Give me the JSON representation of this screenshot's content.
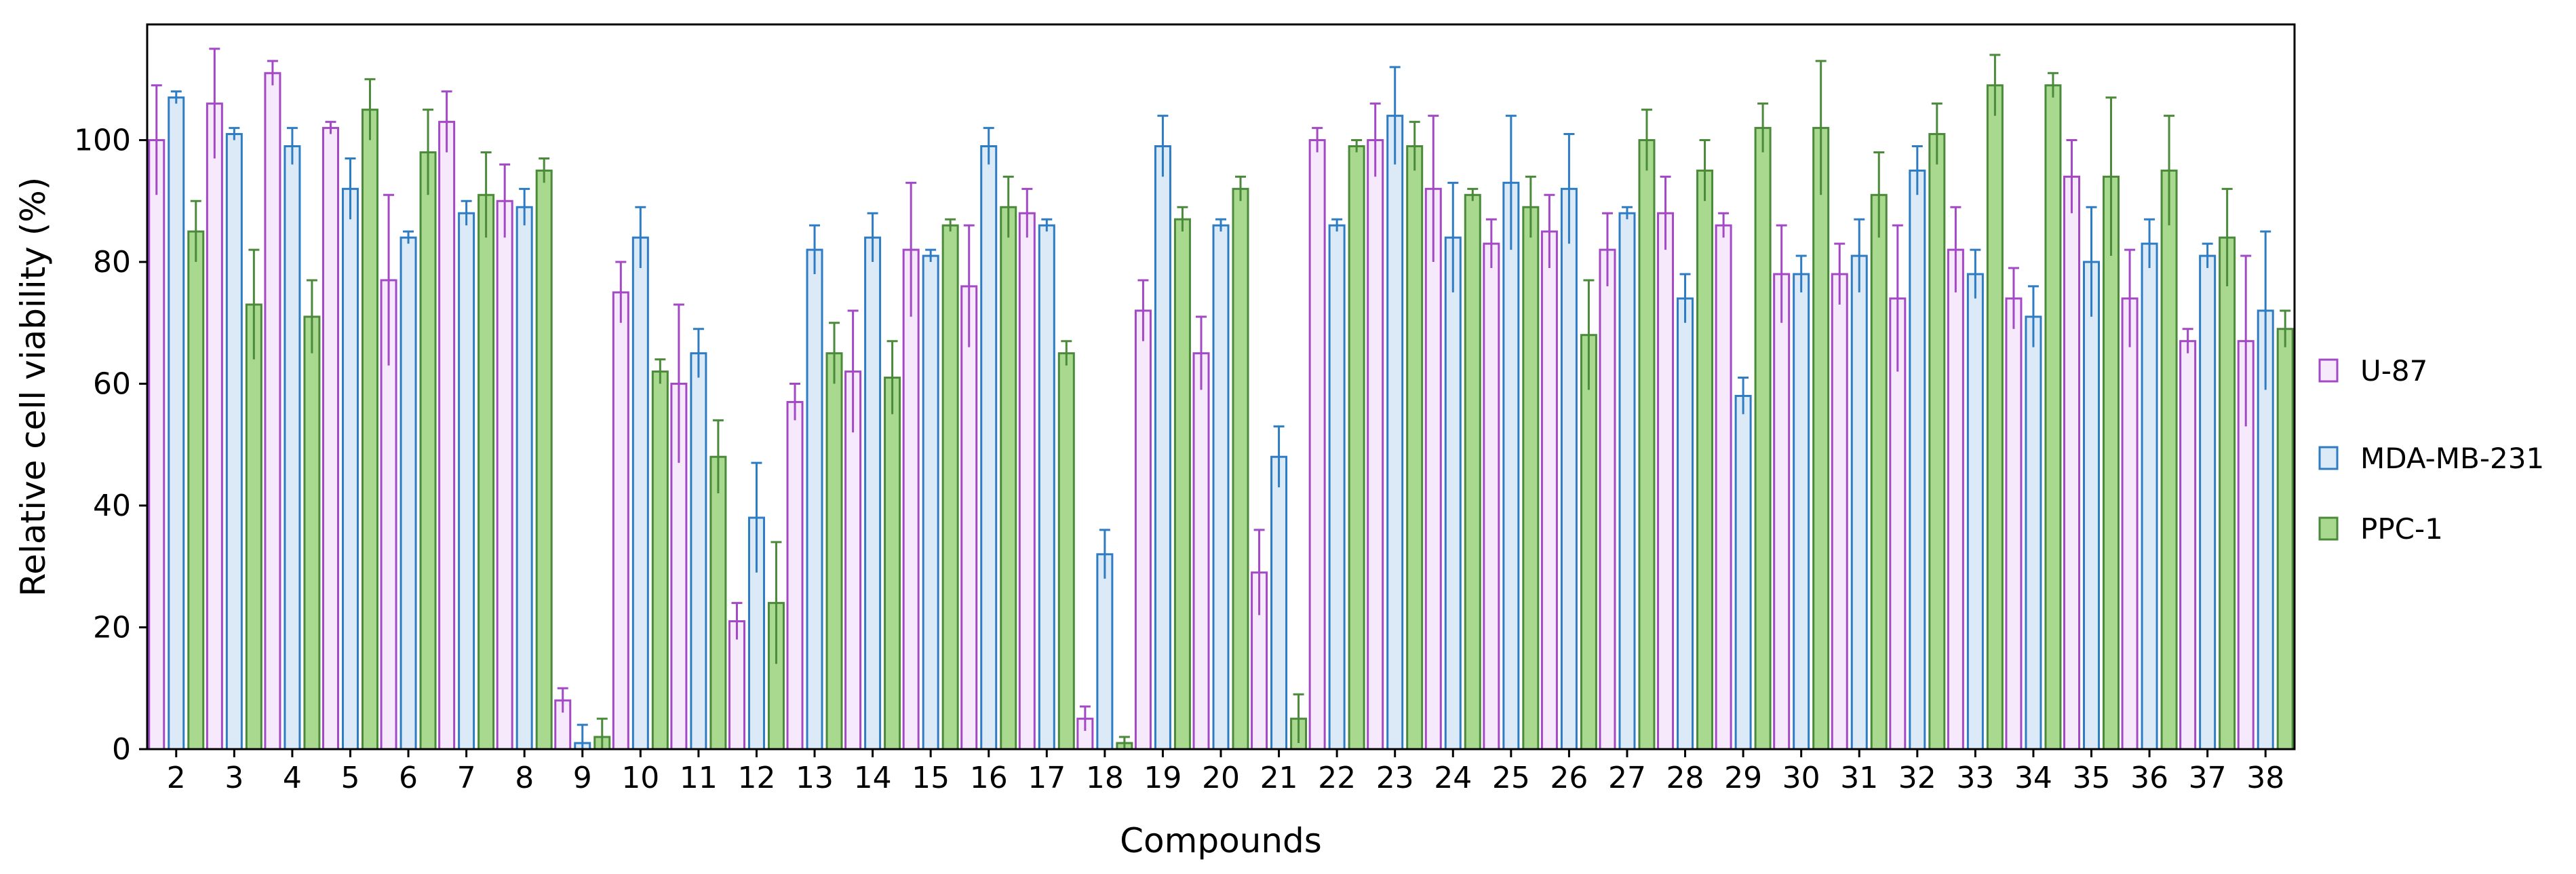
{
  "chart_data": {
    "type": "bar",
    "xlabel": "Compounds",
    "ylabel": "Relative cell viability (%)",
    "ylim": [
      0,
      119
    ],
    "yticks": [
      0,
      20,
      40,
      60,
      80,
      100
    ],
    "legend_position": "right",
    "grid": false,
    "categories": [
      "2",
      "3",
      "4",
      "5",
      "6",
      "7",
      "8",
      "9",
      "10",
      "11",
      "12",
      "13",
      "14",
      "15",
      "16",
      "17",
      "18",
      "19",
      "20",
      "21",
      "22",
      "23",
      "24",
      "25",
      "26",
      "27",
      "28",
      "29",
      "30",
      "31",
      "32",
      "33",
      "34",
      "35",
      "36",
      "37",
      "38"
    ],
    "series": [
      {
        "name": "U-87",
        "edge_color": "#a349c6",
        "fill_color": "#f6e9fb",
        "values": [
          100,
          106,
          111,
          102,
          77,
          103,
          90,
          8,
          75,
          60,
          21,
          57,
          62,
          82,
          76,
          88,
          5,
          72,
          65,
          29,
          100,
          100,
          92,
          83,
          85,
          82,
          88,
          86,
          78,
          78,
          74,
          82,
          74,
          94,
          74,
          67,
          67
        ],
        "errors": [
          9,
          9,
          2,
          1,
          14,
          5,
          6,
          2,
          5,
          13,
          3,
          3,
          10,
          11,
          10,
          4,
          2,
          5,
          6,
          7,
          2,
          6,
          12,
          4,
          6,
          6,
          6,
          2,
          8,
          5,
          12,
          7,
          5,
          6,
          8,
          2,
          14
        ]
      },
      {
        "name": "MDA-MB-231",
        "edge_color": "#2e7cc4",
        "fill_color": "#dbeaf6",
        "values": [
          107,
          101,
          99,
          92,
          84,
          88,
          89,
          1,
          84,
          65,
          38,
          82,
          84,
          81,
          99,
          86,
          32,
          99,
          86,
          48,
          86,
          104,
          84,
          93,
          92,
          88,
          74,
          58,
          78,
          81,
          95,
          78,
          71,
          80,
          83,
          81,
          72
        ],
        "errors": [
          1,
          1,
          3,
          5,
          1,
          2,
          3,
          3,
          5,
          4,
          9,
          4,
          4,
          1,
          3,
          1,
          4,
          5,
          1,
          5,
          1,
          8,
          9,
          11,
          9,
          1,
          4,
          3,
          3,
          6,
          4,
          4,
          5,
          9,
          4,
          2,
          13
        ]
      },
      {
        "name": "PPC-1",
        "edge_color": "#4a8a3a",
        "fill_color": "#a8d98f",
        "values": [
          85,
          73,
          71,
          105,
          98,
          91,
          95,
          2,
          62,
          48,
          24,
          65,
          61,
          86,
          89,
          65,
          1,
          87,
          92,
          5,
          99,
          99,
          91,
          89,
          68,
          100,
          95,
          102,
          102,
          91,
          101,
          109,
          109,
          94,
          95,
          84,
          69
        ],
        "errors": [
          5,
          9,
          6,
          5,
          7,
          7,
          2,
          3,
          2,
          6,
          10,
          5,
          6,
          1,
          5,
          2,
          1,
          2,
          2,
          4,
          1,
          4,
          1,
          5,
          9,
          5,
          5,
          4,
          11,
          7,
          5,
          5,
          2,
          13,
          9,
          8,
          3
        ]
      }
    ]
  }
}
